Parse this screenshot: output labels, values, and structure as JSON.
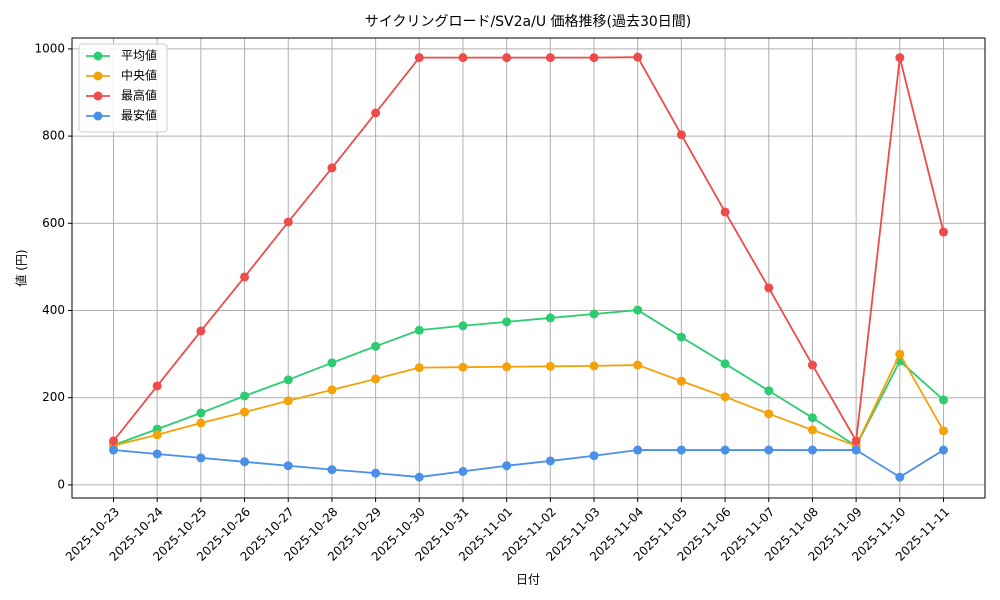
{
  "chart_data": {
    "type": "line",
    "title": "サイクリングロード/SV2a/U 価格推移(過去30日間)",
    "x_label": "日付",
    "y_label": "値 (円)",
    "categories": [
      "2025-10-23",
      "2025-10-24",
      "2025-10-25",
      "2025-10-26",
      "2025-10-27",
      "2025-10-28",
      "2025-10-29",
      "2025-10-30",
      "2025-10-31",
      "2025-11-01",
      "2025-11-02",
      "2025-11-03",
      "2025-11-04",
      "2025-11-05",
      "2025-11-06",
      "2025-11-07",
      "2025-11-08",
      "2025-11-09",
      "2025-11-10",
      "2025-11-11"
    ],
    "series": [
      {
        "name": "平均値",
        "color": "#2ecc71",
        "values": [
          91,
          128,
          165,
          204,
          241,
          280,
          318,
          355,
          365,
          374,
          383,
          392,
          401,
          339,
          278,
          216,
          154,
          89,
          284,
          195
        ]
      },
      {
        "name": "中央値",
        "color": "#f5a20a",
        "values": [
          90,
          115,
          142,
          167,
          193,
          218,
          243,
          269,
          270,
          271,
          272,
          273,
          275,
          238,
          202,
          163,
          126,
          90,
          300,
          124
        ]
      },
      {
        "name": "最高値",
        "color": "#ef4b4b",
        "values": [
          101,
          227,
          353,
          477,
          603,
          727,
          853,
          980,
          980,
          980,
          980,
          980,
          981,
          803,
          626,
          452,
          275,
          101,
          980,
          580
        ]
      },
      {
        "name": "最安値",
        "color": "#4a90e8",
        "values": [
          80,
          71,
          62,
          53,
          44,
          35,
          27,
          18,
          31,
          44,
          55,
          67,
          80,
          80,
          80,
          80,
          80,
          80,
          18,
          80
        ]
      }
    ],
    "ylim": [
      -30,
      1025
    ],
    "yticks": [
      0,
      200,
      400,
      600,
      800,
      1000
    ],
    "grid": true,
    "legend": "upper-left"
  }
}
